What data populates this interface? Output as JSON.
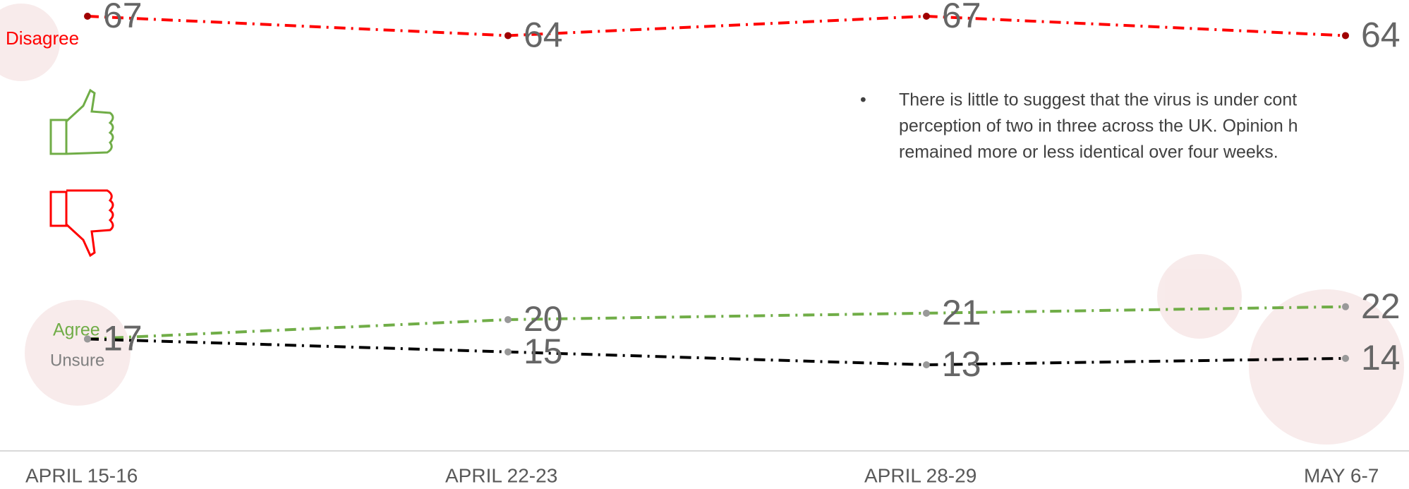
{
  "chart_data": {
    "type": "line",
    "categories": [
      "APRIL 15-16",
      "APRIL 22-23",
      "APRIL 28-29",
      "MAY 6-7"
    ],
    "series": [
      {
        "name": "Disagree",
        "color": "#ff0000",
        "values": [
          67,
          64,
          67,
          64
        ]
      },
      {
        "name": "Agree",
        "color": "#70ad47",
        "values": [
          17,
          20,
          21,
          22
        ]
      },
      {
        "name": "Unsure",
        "color": "#000000",
        "values": [
          17,
          15,
          13,
          14
        ]
      }
    ],
    "annotations": [
      "There is little to suggest that the virus is under cont",
      "perception of two in three across the UK.  Opinion h",
      "remained more or less identical over four weeks."
    ]
  }
}
